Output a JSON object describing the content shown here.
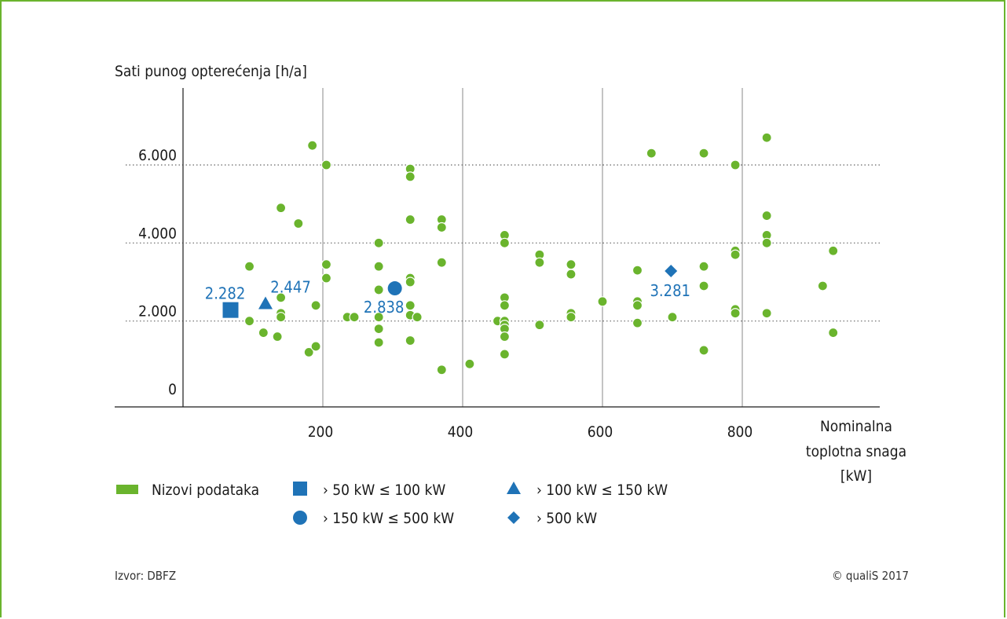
{
  "colors": {
    "frame": "#6ab42d",
    "points": "#6ab42d",
    "highlight": "#1f73b7"
  },
  "source": "Izvor: DBFZ",
  "copyright": "© qualiS 2017",
  "chart_data": {
    "type": "scatter",
    "ylabel": "Sati punog opterećenja [h/a]",
    "xlabel_lines": [
      "Nominalna",
      "toplotna snaga",
      "[kW]"
    ],
    "x_ticks": [
      "200",
      "400",
      "600",
      "800"
    ],
    "x_tick_values": [
      200,
      400,
      600,
      800
    ],
    "y_ticks": [
      "0",
      "2.000",
      "4.000",
      "6.000"
    ],
    "y_tick_values": [
      0,
      2000,
      4000,
      6000
    ],
    "xlim": [
      -10,
      1020
    ],
    "ylim": [
      0,
      8000
    ],
    "grid": {
      "x": "solid",
      "y": "dotted"
    },
    "series": [
      {
        "name": "Nizovi podataka",
        "marker": "circle",
        "points": [
          [
            95,
            3400
          ],
          [
            95,
            2000
          ],
          [
            115,
            1700
          ],
          [
            135,
            1600
          ],
          [
            140,
            2200
          ],
          [
            140,
            2600
          ],
          [
            140,
            4900
          ],
          [
            140,
            2100
          ],
          [
            165,
            4500
          ],
          [
            180,
            1200
          ],
          [
            185,
            6500
          ],
          [
            190,
            2400
          ],
          [
            190,
            1350
          ],
          [
            205,
            6000
          ],
          [
            205,
            3450
          ],
          [
            205,
            3100
          ],
          [
            235,
            2100
          ],
          [
            245,
            2100
          ],
          [
            280,
            4000
          ],
          [
            280,
            3400
          ],
          [
            280,
            2800
          ],
          [
            280,
            2100
          ],
          [
            280,
            1800
          ],
          [
            280,
            1450
          ],
          [
            325,
            5900
          ],
          [
            325,
            5700
          ],
          [
            325,
            4600
          ],
          [
            325,
            3100
          ],
          [
            325,
            3000
          ],
          [
            325,
            2400
          ],
          [
            325,
            2150
          ],
          [
            325,
            1500
          ],
          [
            335,
            2100
          ],
          [
            370,
            4600
          ],
          [
            370,
            4400
          ],
          [
            370,
            3500
          ],
          [
            370,
            750
          ],
          [
            410,
            900
          ],
          [
            450,
            2000
          ],
          [
            460,
            4200
          ],
          [
            460,
            4000
          ],
          [
            460,
            2600
          ],
          [
            460,
            2400
          ],
          [
            460,
            2000
          ],
          [
            460,
            1900
          ],
          [
            460,
            1800
          ],
          [
            460,
            1600
          ],
          [
            460,
            1150
          ],
          [
            510,
            3700
          ],
          [
            510,
            3500
          ],
          [
            510,
            1900
          ],
          [
            555,
            3450
          ],
          [
            555,
            3200
          ],
          [
            555,
            2200
          ],
          [
            555,
            2100
          ],
          [
            600,
            2500
          ],
          [
            650,
            3300
          ],
          [
            650,
            2500
          ],
          [
            650,
            2400
          ],
          [
            650,
            1950
          ],
          [
            670,
            6300
          ],
          [
            700,
            2100
          ],
          [
            745,
            6300
          ],
          [
            745,
            3400
          ],
          [
            745,
            2900
          ],
          [
            745,
            1250
          ],
          [
            790,
            6000
          ],
          [
            790,
            3800
          ],
          [
            790,
            3700
          ],
          [
            790,
            2300
          ],
          [
            790,
            2200
          ],
          [
            835,
            6700
          ],
          [
            835,
            4700
          ],
          [
            835,
            4200
          ],
          [
            835,
            4000
          ],
          [
            835,
            2200
          ],
          [
            915,
            2900
          ],
          [
            930,
            3800
          ],
          [
            930,
            1700
          ]
        ]
      },
      {
        "name": "› 50 kW ≤ 100 kW",
        "marker": "square",
        "points": [
          [
            68,
            2282
          ]
        ],
        "label": "2.282"
      },
      {
        "name": "› 100 kW ≤ 150 kW",
        "marker": "triangle",
        "points": [
          [
            118,
            2447
          ]
        ],
        "label": "2.447"
      },
      {
        "name": "› 150 kW ≤ 500 kW",
        "marker": "circle-large",
        "points": [
          [
            303,
            2838
          ]
        ],
        "label": "2.838"
      },
      {
        "name": "› 500 kW",
        "marker": "diamond",
        "points": [
          [
            698,
            3281
          ]
        ],
        "label": "3.281"
      }
    ]
  }
}
